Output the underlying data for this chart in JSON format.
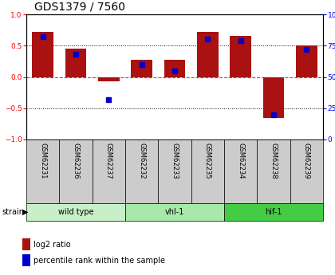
{
  "title": "GDS1379 / 7560",
  "samples": [
    "GSM62231",
    "GSM62236",
    "GSM62237",
    "GSM62232",
    "GSM62233",
    "GSM62235",
    "GSM62234",
    "GSM62238",
    "GSM62239"
  ],
  "log2_ratio": [
    0.72,
    0.45,
    -0.07,
    0.28,
    0.28,
    0.72,
    0.65,
    -0.65,
    0.5
  ],
  "percentile_rank": [
    82,
    68,
    32,
    60,
    55,
    80,
    79,
    20,
    72
  ],
  "groups": [
    {
      "label": "wild type",
      "start": 0,
      "end": 3,
      "color": "#c8f0c8"
    },
    {
      "label": "vhl-1",
      "start": 3,
      "end": 6,
      "color": "#a8e8a8"
    },
    {
      "label": "hif-1",
      "start": 6,
      "end": 9,
      "color": "#44cc44"
    }
  ],
  "ylim": [
    -1,
    1
  ],
  "y2lim": [
    0,
    100
  ],
  "yticks": [
    -1,
    -0.5,
    0,
    0.5,
    1
  ],
  "y2ticks": [
    0,
    25,
    50,
    75,
    100
  ],
  "bar_color": "#aa1111",
  "dot_color": "#0000cc",
  "hline_color": "#ee3333",
  "bg_color": "#ffffff",
  "label_bg": "#cccccc",
  "legend_red": "log2 ratio",
  "legend_blue": "percentile rank within the sample"
}
